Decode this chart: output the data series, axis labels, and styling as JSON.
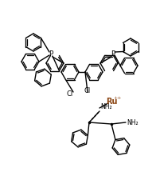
{
  "background_color": "#ffffff",
  "line_color": "#000000",
  "ru_color": "#8B4513",
  "bond_lw": 1.0,
  "ring_r": 11,
  "figsize": [
    1.96,
    2.35
  ],
  "dpi": 100,
  "xlim": [
    0,
    196
  ],
  "ylim": [
    0,
    235
  ]
}
